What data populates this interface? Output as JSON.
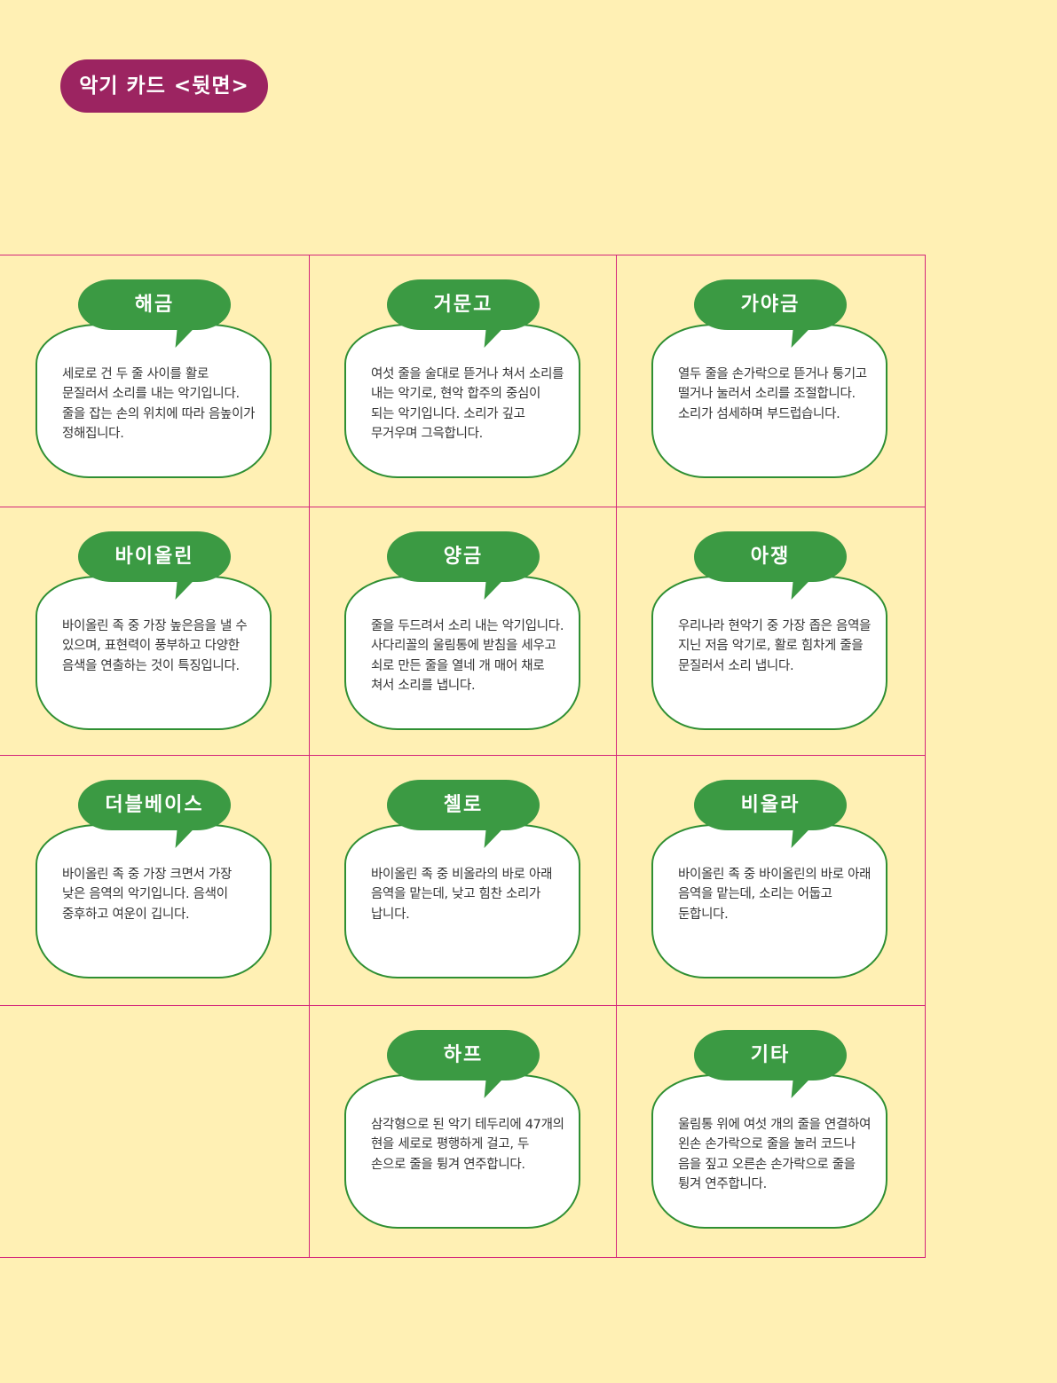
{
  "header": {
    "title": "악기 카드 <뒷면>"
  },
  "colors": {
    "background": "#fff0b4",
    "header": "#9c2461",
    "grid_line": "#d4267b",
    "tag": "#3b9a43",
    "card_border": "#2f8f33"
  },
  "cards": [
    {
      "name": "해금",
      "description": "세로로 건 두 줄 사이를 활로 문질러서 소리를 내는 악기입니다. 줄을 잡는 손의 위치에 따라 음높이가 정해집니다."
    },
    {
      "name": "거문고",
      "description": "여섯 줄을 술대로 뜯거나 쳐서 소리를 내는 악기로, 현악 합주의 중심이 되는 악기입니다. 소리가 깊고 무거우며 그윽합니다."
    },
    {
      "name": "가야금",
      "description": "열두 줄을 손가락으로 뜯거나 퉁기고 떨거나 눌러서 소리를 조절합니다. 소리가 섬세하며 부드럽습니다."
    },
    {
      "name": "바이올린",
      "description": "바이올린 족 중 가장 높은음을 낼 수 있으며, 표현력이 풍부하고 다양한 음색을 연출하는 것이 특징입니다."
    },
    {
      "name": "양금",
      "description": "줄을 두드려서 소리 내는 악기입니다. 사다리꼴의 울림통에 받침을 세우고 쇠로 만든 줄을 열네 개 매어 채로 쳐서 소리를 냅니다."
    },
    {
      "name": "아쟁",
      "description": "우리나라 현악기 중 가장 좁은 음역을 지닌 저음 악기로, 활로 힘차게 줄을 문질러서 소리 냅니다."
    },
    {
      "name": "더블베이스",
      "description": "바이올린 족 중 가장 크면서 가장 낮은 음역의 악기입니다. 음색이 중후하고 여운이 깁니다."
    },
    {
      "name": "첼로",
      "description": "바이올린 족 중 비올라의 바로 아래 음역을 맡는데, 낮고 힘찬 소리가 납니다."
    },
    {
      "name": "비올라",
      "description": "바이올린 족 중 바이올린의 바로 아래 음역을 맡는데, 소리는 어둡고 둔합니다."
    },
    {
      "name": "하프",
      "description": "삼각형으로 된 악기 테두리에 47개의 현을 세로로 평행하게 걸고, 두 손으로 줄을 튕겨 연주합니다."
    },
    {
      "name": "기타",
      "description": "울림통 위에 여섯 개의 줄을 연결하여 왼손 손가락으로 줄을 눌러 코드나 음을 짚고 오른손 손가락으로 줄을 튕겨 연주합니다."
    }
  ]
}
